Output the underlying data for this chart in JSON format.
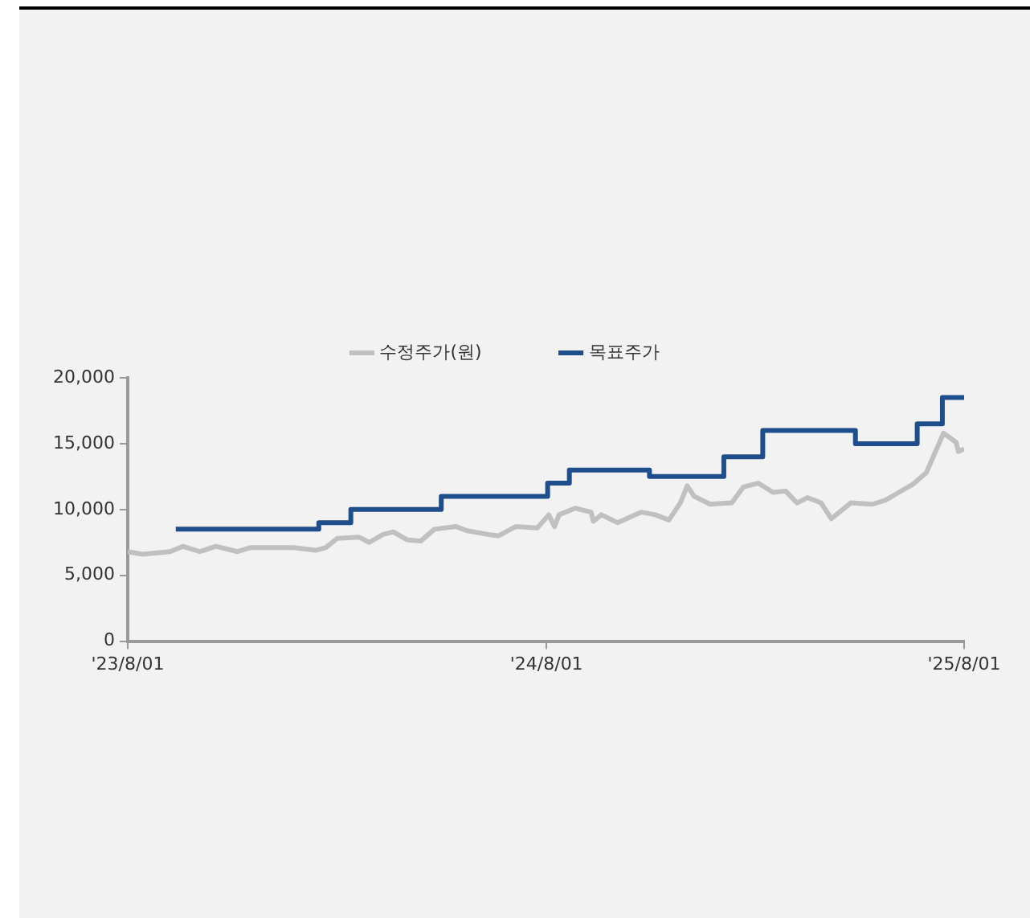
{
  "chart_data": {
    "type": "line",
    "legend": "top",
    "grid": false,
    "marker": "none",
    "xlim": [
      "2023-08-01",
      "2025-08-01"
    ],
    "xticks": [
      {
        "value": "2023-08-01",
        "label": "'23/8/01"
      },
      {
        "value": "2024-08-01",
        "label": "'24/8/01"
      },
      {
        "value": "2025-08-01",
        "label": "'25/8/01"
      }
    ],
    "ylim": [
      0,
      20000
    ],
    "yticks": [
      {
        "value": 0,
        "label": "0"
      },
      {
        "value": 5000,
        "label": "5,000"
      },
      {
        "value": 10000,
        "label": "10,000"
      },
      {
        "value": 15000,
        "label": "15,000"
      },
      {
        "value": 20000,
        "label": "20,000"
      }
    ],
    "series": [
      {
        "name": "수정주가(원)",
        "type": "line",
        "color": "#c0c0c0",
        "x": [
          "2023-08-01",
          "2023-08-14",
          "2023-09-07",
          "2023-09-18",
          "2023-10-03",
          "2023-10-17",
          "2023-11-05",
          "2023-11-16",
          "2023-12-24",
          "2024-01-12",
          "2024-01-21",
          "2024-01-31",
          "2024-02-19",
          "2024-02-28",
          "2024-03-11",
          "2024-03-20",
          "2024-04-01",
          "2024-04-13",
          "2024-04-25",
          "2024-05-14",
          "2024-05-23",
          "2024-06-11",
          "2024-06-20",
          "2024-07-05",
          "2024-07-24",
          "2024-08-03",
          "2024-08-08",
          "2024-08-12",
          "2024-08-26",
          "2024-09-09",
          "2024-09-11",
          "2024-09-18",
          "2024-10-02",
          "2024-10-23",
          "2024-11-04",
          "2024-11-16",
          "2024-11-26",
          "2024-12-02",
          "2024-12-08",
          "2024-12-22",
          "2025-01-10",
          "2025-01-20",
          "2025-02-02",
          "2025-02-15",
          "2025-02-26",
          "2025-03-08",
          "2025-03-17",
          "2025-03-29",
          "2025-04-07",
          "2025-04-24",
          "2025-05-13",
          "2025-05-24",
          "2025-06-05",
          "2025-06-17",
          "2025-06-29",
          "2025-07-06",
          "2025-07-14",
          "2025-07-25",
          "2025-07-27",
          "2025-08-01"
        ],
        "values": [
          6800,
          6600,
          6800,
          7200,
          6800,
          7200,
          6800,
          7100,
          7100,
          6900,
          7100,
          7800,
          7900,
          7500,
          8100,
          8300,
          7700,
          7600,
          8500,
          8700,
          8400,
          8100,
          8000,
          8700,
          8600,
          9600,
          8700,
          9600,
          10100,
          9800,
          9100,
          9600,
          9000,
          9800,
          9600,
          9200,
          10500,
          11800,
          11000,
          10400,
          10500,
          11700,
          12000,
          11300,
          11400,
          10500,
          10900,
          10500,
          9300,
          10500,
          10400,
          10700,
          11300,
          11900,
          12800,
          14200,
          15800,
          15100,
          14400,
          14600
        ]
      },
      {
        "name": "목표주가",
        "type": "step",
        "color": "#1f4e8c",
        "x": [
          "2023-09-12",
          "2024-01-15",
          "2024-02-12",
          "2024-05-01",
          "2024-08-02",
          "2024-08-21",
          "2024-10-30",
          "2025-01-03",
          "2025-02-06",
          "2025-04-28",
          "2025-06-21",
          "2025-07-13",
          "2025-08-01"
        ],
        "values": [
          8500,
          9000,
          10000,
          11000,
          12000,
          13000,
          12500,
          14000,
          16000,
          15000,
          16500,
          18500,
          18500
        ]
      }
    ]
  }
}
